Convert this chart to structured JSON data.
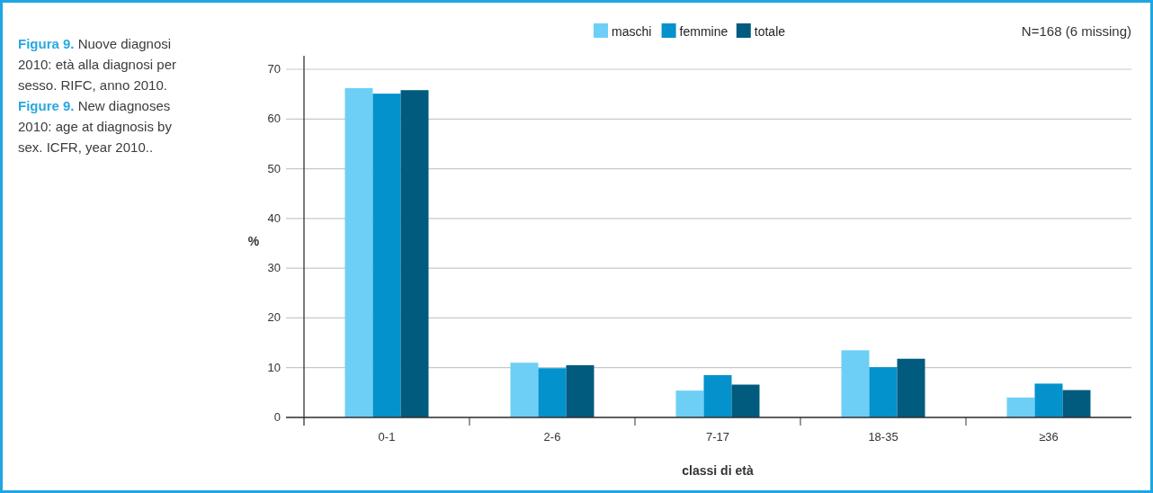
{
  "chart_data": {
    "type": "bar",
    "title": "Figura 9. Nuove diagnosi 2010: età alla diagnosi per sesso. RIFC, anno 2010.",
    "subtitle": "Figure 9. New diagnoses 2010: age at diagnosis by sex. ICFR, year 2010..",
    "xlabel": "classi di età",
    "ylabel": "%",
    "annotations": [
      "N=168 (6 missing)"
    ],
    "categories": [
      "0-1",
      "2-6",
      "7-17",
      "18-35",
      "≥36"
    ],
    "series": [
      {
        "name": "maschi",
        "color": "#6dcff6",
        "values": [
          66.2,
          11.0,
          5.4,
          13.5,
          4.0
        ]
      },
      {
        "name": "femmine",
        "color": "#0392cc",
        "values": [
          65.1,
          9.9,
          8.5,
          10.1,
          6.8
        ]
      },
      {
        "name": "totale",
        "color": "#005b7f",
        "values": [
          65.8,
          10.5,
          6.6,
          11.8,
          5.5
        ]
      }
    ],
    "ylim": [
      0,
      70
    ],
    "yticks": [
      0,
      10,
      20,
      30,
      40,
      50,
      60,
      70
    ],
    "grid": "y",
    "legend": "top"
  }
}
